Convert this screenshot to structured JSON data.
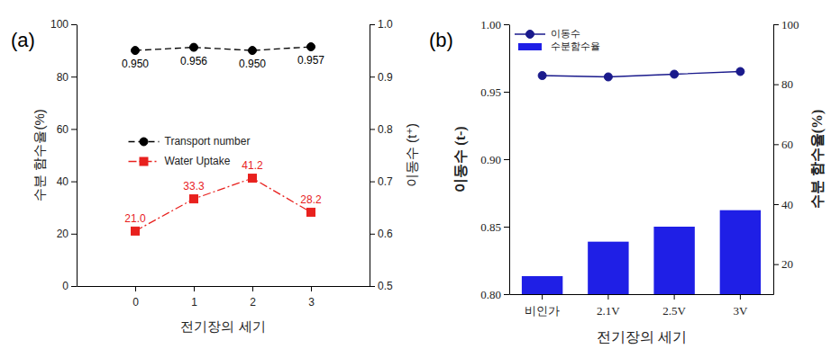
{
  "chart_data": [
    {
      "type": "line",
      "title": "(a)",
      "x_label": "전기장의 세기",
      "y_label": "수분 함수율(%)",
      "y2_label": "이동수 (t⁺)",
      "x": [
        0,
        1,
        2,
        3
      ],
      "xlim": [
        -1,
        4
      ],
      "xticks": [
        0,
        1,
        2,
        3
      ],
      "ylim": [
        0,
        100
      ],
      "yticks": [
        0,
        20,
        40,
        60,
        80,
        100
      ],
      "y2lim": [
        0.5,
        1.0
      ],
      "y2ticks": [
        0.5,
        0.6,
        0.7,
        0.8,
        0.9,
        {
          "value": 1.0,
          "label": "1.0"
        }
      ],
      "series": [
        {
          "name": "Transport number",
          "axis": "y2",
          "color": "#000000",
          "marker": "circle",
          "line_style": "dashed",
          "values": [
            0.95,
            0.956,
            0.95,
            0.957
          ],
          "value_labels": [
            "0.950",
            "0.956",
            "0.950",
            "0.957"
          ]
        },
        {
          "name": "Water Uptake",
          "axis": "y",
          "color": "#e8211e",
          "marker": "square",
          "line_style": "dashdot",
          "values": [
            21.0,
            33.3,
            41.2,
            28.2
          ],
          "value_labels": [
            "21.0",
            "33.3",
            "41.2",
            "28.2"
          ]
        }
      ],
      "data_labels": true,
      "legend": "center",
      "grid": false
    },
    {
      "type": "bar",
      "title": "(b)",
      "x_label": "전기장의 세기",
      "y_label": "이동수 (t-)",
      "y2_label": "수분 함수율(%)",
      "categories": [
        "비인가",
        "2.1V",
        "2.5V",
        "3V"
      ],
      "ylim": [
        0.8,
        1.0
      ],
      "yticks": [
        {
          "value": 0.8,
          "label": "0.80"
        },
        {
          "value": 0.85,
          "label": "0.85"
        },
        {
          "value": 0.9,
          "label": "0.90"
        },
        0.95,
        {
          "value": 1.0,
          "label": "1.00"
        }
      ],
      "y2lim": [
        10,
        100
      ],
      "y2ticks": [
        20,
        40,
        60,
        80,
        100
      ],
      "series": [
        {
          "name": "이동수",
          "type": "line",
          "axis": "y",
          "color": "#1a1a8c",
          "marker": "circle",
          "line_style": "solid",
          "values": [
            0.962,
            0.961,
            0.963,
            0.965
          ]
        },
        {
          "name": "수분함수율",
          "type": "bar",
          "axis": "y2",
          "color": "#1f1fe6",
          "values": [
            16,
            27.5,
            32.5,
            38
          ]
        }
      ],
      "legend": "top-left",
      "grid": false
    }
  ]
}
